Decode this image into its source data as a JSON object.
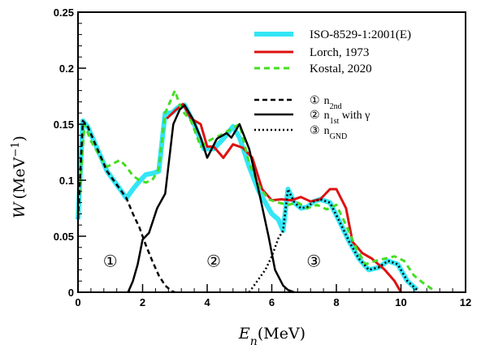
{
  "chart_data": {
    "type": "line",
    "xlabel": "E_n (MeV)",
    "xlabel_parts": {
      "var": "E",
      "sub": "n",
      "unit": "(MeV)"
    },
    "ylabel": "W (MeV^-1)",
    "ylabel_parts": {
      "var": "W",
      "unit_open": "(MeV",
      "exp": "−1",
      "unit_close": ")"
    },
    "xlim": [
      0,
      12
    ],
    "ylim": [
      0,
      0.25
    ],
    "x_ticks": [
      "0",
      "2",
      "4",
      "6",
      "8",
      "10",
      "12"
    ],
    "y_ticks": [
      "0",
      "0.05",
      "0.1",
      "0.15",
      "0.2",
      "0.25"
    ],
    "grid": false,
    "legend_position": "top-right",
    "series": [
      {
        "name": "ISO-8529-1:2001(E)",
        "color": "#33e6f5",
        "style": "solid-thick",
        "x": [
          0.0,
          0.15,
          0.3,
          0.6,
          0.9,
          1.1,
          1.3,
          1.5,
          1.7,
          1.9,
          2.1,
          2.3,
          2.5,
          2.7,
          2.9,
          3.1,
          3.3,
          3.6,
          3.9,
          4.2,
          4.5,
          4.8,
          5.0,
          5.3,
          5.6,
          5.8,
          6.0,
          6.2,
          6.35,
          6.5,
          6.7,
          6.9,
          7.1,
          7.3,
          7.5,
          7.8,
          8.1,
          8.4,
          8.7,
          9.0,
          9.3,
          9.6,
          9.9,
          10.2,
          10.5
        ],
        "values": [
          0.065,
          0.153,
          0.148,
          0.128,
          0.108,
          0.1,
          0.092,
          0.084,
          0.092,
          0.099,
          0.105,
          0.106,
          0.108,
          0.16,
          0.16,
          0.165,
          0.167,
          0.15,
          0.128,
          0.128,
          0.137,
          0.148,
          0.138,
          0.112,
          0.09,
          0.08,
          0.07,
          0.065,
          0.055,
          0.092,
          0.08,
          0.075,
          0.076,
          0.081,
          0.083,
          0.08,
          0.063,
          0.045,
          0.03,
          0.02,
          0.022,
          0.028,
          0.025,
          0.01,
          0.002
        ]
      },
      {
        "name": "Lorch, 1973",
        "color": "#dd1111",
        "style": "solid",
        "x": [
          2.75,
          3.0,
          3.25,
          3.5,
          3.8,
          4.0,
          4.2,
          4.5,
          4.8,
          5.1,
          5.4,
          5.7,
          6.0,
          6.3,
          6.6,
          6.9,
          7.2,
          7.5,
          7.8,
          8.0,
          8.3,
          8.5,
          8.8,
          9.1,
          9.5,
          9.8,
          10.0
        ],
        "values": [
          0.155,
          0.162,
          0.168,
          0.155,
          0.15,
          0.13,
          0.13,
          0.12,
          0.132,
          0.129,
          0.12,
          0.092,
          0.082,
          0.083,
          0.082,
          0.085,
          0.081,
          0.083,
          0.092,
          0.092,
          0.075,
          0.045,
          0.035,
          0.03,
          0.02,
          0.01,
          0.0
        ]
      },
      {
        "name": "Kostal, 2020",
        "color": "#44dd22",
        "style": "dashed",
        "x": [
          0.0,
          0.2,
          0.4,
          0.7,
          0.9,
          1.1,
          1.3,
          1.5,
          1.7,
          1.9,
          2.1,
          2.3,
          2.5,
          2.7,
          3.0,
          3.2,
          3.5,
          3.8,
          4.1,
          4.4,
          4.7,
          5.0,
          5.3,
          5.6,
          5.9,
          6.2,
          6.5,
          6.8,
          7.1,
          7.4,
          7.7,
          8.0,
          8.3,
          8.6,
          8.9,
          9.2,
          9.5,
          9.8,
          10.1,
          10.4,
          10.7,
          11.0
        ],
        "values": [
          0.07,
          0.15,
          0.135,
          0.12,
          0.112,
          0.115,
          0.118,
          0.112,
          0.104,
          0.1,
          0.098,
          0.1,
          0.11,
          0.16,
          0.18,
          0.163,
          0.153,
          0.13,
          0.136,
          0.14,
          0.145,
          0.15,
          0.115,
          0.095,
          0.083,
          0.08,
          0.078,
          0.08,
          0.075,
          0.078,
          0.074,
          0.078,
          0.06,
          0.04,
          0.025,
          0.028,
          0.03,
          0.032,
          0.028,
          0.015,
          0.008,
          0.002
        ]
      },
      {
        "name": "n_2nd",
        "color": "#000000",
        "style": "dashed-black",
        "x": [
          0.0,
          0.15,
          0.3,
          0.6,
          0.9,
          1.1,
          1.3,
          1.5,
          1.7,
          1.9,
          2.1,
          2.3,
          2.5,
          2.7,
          2.9,
          3.0
        ],
        "values": [
          0.065,
          0.153,
          0.148,
          0.128,
          0.108,
          0.1,
          0.092,
          0.084,
          0.07,
          0.058,
          0.042,
          0.028,
          0.015,
          0.006,
          0.001,
          0.0
        ]
      },
      {
        "name": "n_1st with γ",
        "color": "#000000",
        "style": "solid-black",
        "x": [
          1.55,
          1.7,
          1.85,
          2.0,
          2.2,
          2.45,
          2.7,
          2.95,
          3.15,
          3.3,
          3.55,
          3.8,
          4.0,
          4.3,
          4.6,
          4.75,
          5.0,
          5.3,
          5.6,
          5.9,
          6.1,
          6.35,
          6.5,
          6.7
        ],
        "values": [
          0.0,
          0.01,
          0.025,
          0.047,
          0.053,
          0.075,
          0.088,
          0.15,
          0.163,
          0.167,
          0.155,
          0.138,
          0.12,
          0.137,
          0.142,
          0.138,
          0.15,
          0.128,
          0.09,
          0.05,
          0.02,
          0.006,
          0.002,
          0.0
        ]
      },
      {
        "name": "n_GND",
        "color": "#000000",
        "style": "dotted",
        "x": [
          5.3,
          5.6,
          5.8,
          6.0,
          6.2,
          6.35,
          6.5,
          6.7,
          6.9,
          7.1,
          7.3,
          7.5,
          7.8,
          8.1,
          8.4,
          8.7,
          9.0,
          9.3,
          9.6,
          9.9,
          10.2,
          10.5
        ],
        "values": [
          0.0,
          0.012,
          0.02,
          0.032,
          0.048,
          0.055,
          0.092,
          0.08,
          0.075,
          0.076,
          0.081,
          0.083,
          0.08,
          0.063,
          0.045,
          0.03,
          0.02,
          0.022,
          0.028,
          0.025,
          0.01,
          0.002
        ]
      }
    ],
    "legend": {
      "iso": "ISO-8529-1:2001(E)",
      "lorch": "Lorch, 1973",
      "kostal": "Kostal, 2020",
      "n2nd_mark": "①",
      "n2nd_var": "n",
      "n2nd_sub": "2nd",
      "n1st_mark": "②",
      "n1st_var": "n",
      "n1st_sub": "1st",
      "n1st_tail": " with γ",
      "ngnd_mark": "③",
      "ngnd_var": "n",
      "ngnd_sub": "GND"
    },
    "annotations": [
      {
        "text": "①",
        "x": 1.0,
        "y": 0.028
      },
      {
        "text": "②",
        "x": 4.2,
        "y": 0.028
      },
      {
        "text": "③",
        "x": 7.3,
        "y": 0.028
      }
    ]
  }
}
